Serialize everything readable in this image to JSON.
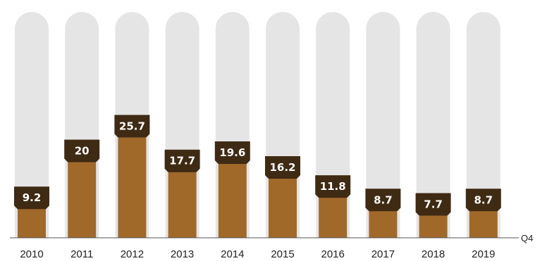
{
  "chart_data": {
    "type": "bar",
    "categories": [
      "2010",
      "2011",
      "2012",
      "2013",
      "2014",
      "2015",
      "2016",
      "2017",
      "2018",
      "2019"
    ],
    "values": [
      9.2,
      20,
      25.7,
      17.7,
      19.6,
      16.2,
      11.8,
      8.7,
      7.7,
      8.7
    ],
    "value_labels": [
      "9.2",
      "20",
      "25.7",
      "17.7",
      "19.6",
      "16.2",
      "11.8",
      "8.7",
      "7.7",
      "8.7"
    ],
    "axis_end_label": "Q4",
    "ylim": [
      0,
      52
    ],
    "grid": false,
    "legend": "none",
    "colors": {
      "bar": "#a0692a",
      "track": "#e5e5e5",
      "label_box": "#3f2a14",
      "label_text": "#ffffff",
      "axis": "#555555",
      "tick_text": "#222222"
    }
  }
}
